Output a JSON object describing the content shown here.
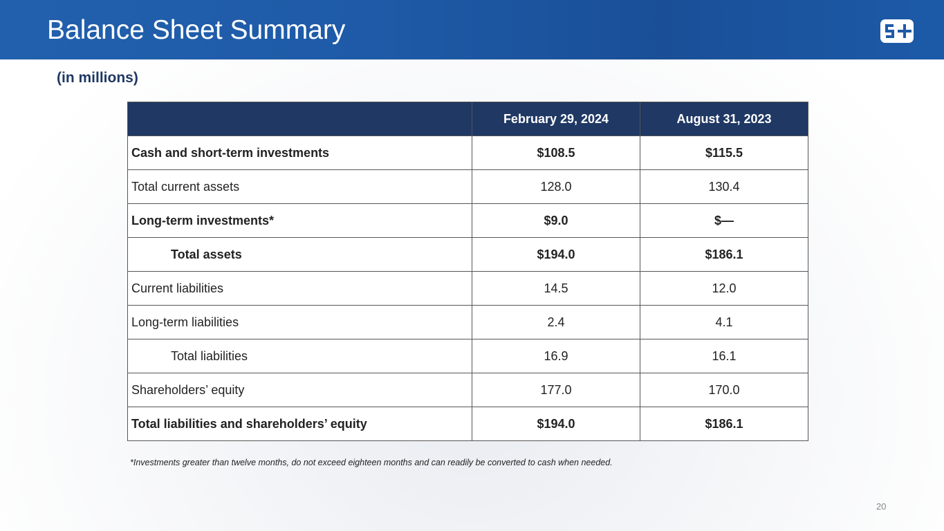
{
  "header": {
    "title": "Balance Sheet Summary"
  },
  "subtitle": "(in millions)",
  "table": {
    "columns": [
      "February 29, 2024",
      "August 31, 2023"
    ],
    "rows": [
      [
        "Cash and short-term investments",
        "$108.5",
        "$115.5"
      ],
      [
        "Total current assets",
        "128.0",
        "130.4"
      ],
      [
        "Long-term investments*",
        "$9.0",
        "$—"
      ],
      [
        "Total assets",
        "$194.0",
        "$186.1"
      ],
      [
        "Current liabilities",
        "14.5",
        "12.0"
      ],
      [
        "Long-term liabilities",
        "2.4",
        "4.1"
      ],
      [
        "Total liabilities",
        "16.9",
        "16.1"
      ],
      [
        "Shareholders’ equity",
        "177.0",
        "170.0"
      ],
      [
        "Total liabilities and shareholders’ equity",
        "$194.0",
        "$186.1"
      ]
    ]
  },
  "footnote": "*Investments greater than twelve months, do not exceed eighteen months and can readily be converted to cash when needed.",
  "page_number": "20"
}
